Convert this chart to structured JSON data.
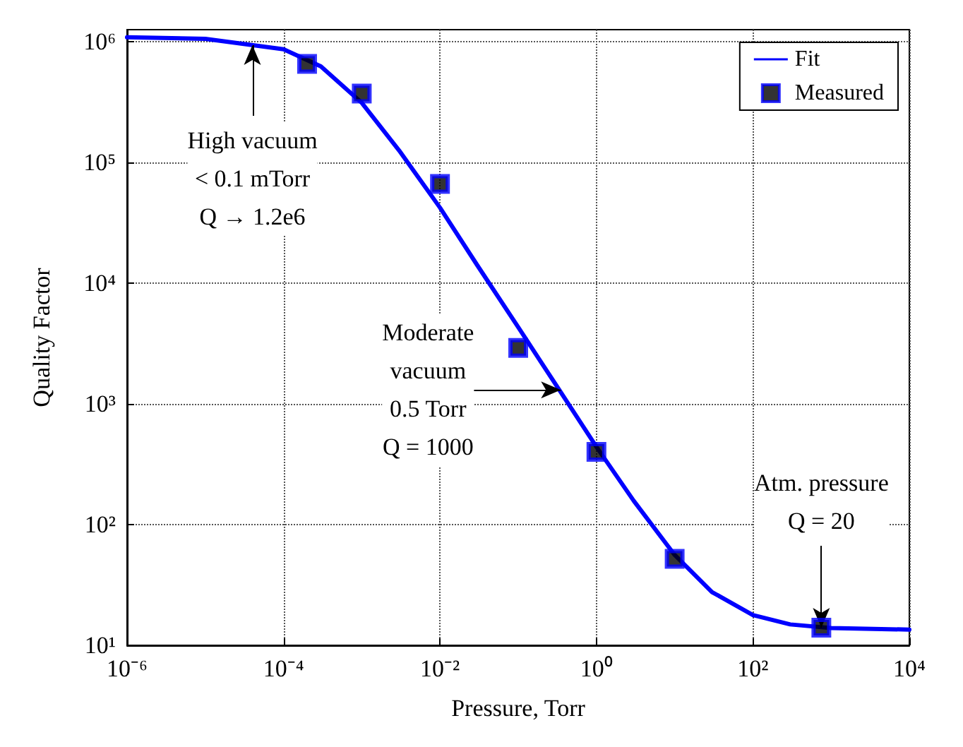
{
  "chart_data": {
    "type": "line",
    "xlabel": "Pressure, Torr",
    "ylabel": "Quality Factor",
    "log": "xy",
    "grid": true,
    "legend": "top right",
    "xlim": [
      1e-06,
      10000
    ],
    "ylim": [
      10,
      1250000
    ],
    "xticks": [
      {
        "value": 1e-06,
        "label": "10⁻⁶"
      },
      {
        "value": 0.0001,
        "label": "10⁻⁴"
      },
      {
        "value": 0.01,
        "label": "10⁻²"
      },
      {
        "value": 1,
        "label": "10⁰"
      },
      {
        "value": 100,
        "label": "10²"
      },
      {
        "value": 10000,
        "label": "10⁴"
      }
    ],
    "yticks": [
      {
        "value": 10,
        "label": "10¹"
      },
      {
        "value": 100,
        "label": "10²"
      },
      {
        "value": 1000,
        "label": "10³"
      },
      {
        "value": 10000,
        "label": "10⁴"
      },
      {
        "value": 100000,
        "label": "10⁵"
      },
      {
        "value": 1000000,
        "label": "10⁶"
      }
    ],
    "series": [
      {
        "name": "Fit",
        "type": "line",
        "color": "#0000ff",
        "marker": "none",
        "line_style": "solid",
        "x": [
          1e-06,
          1e-05,
          0.0001,
          0.0003,
          0.001,
          0.003,
          0.01,
          0.03,
          0.1,
          0.3,
          1,
          3,
          10,
          30,
          100,
          300,
          1000,
          10000
        ],
        "values": [
          1080000,
          1050000,
          860000,
          620000,
          310000,
          125000,
          42000,
          14000,
          4300,
          1450,
          440,
          157,
          56,
          27.6,
          17.8,
          14.9,
          13.9,
          13.5
        ]
      },
      {
        "name": "Measured",
        "type": "scatter",
        "color": "#0000ff",
        "marker": "square",
        "x": [
          0.0002,
          0.001,
          0.01,
          0.1,
          1,
          10,
          750
        ],
        "values": [
          650000,
          370000,
          66000,
          2900,
          400,
          52,
          14
        ]
      }
    ],
    "annotations": [
      {
        "text": "High vacuum\n< 0.1 mTorr\nQ → 1.2e6",
        "x": 4e-05,
        "y": 930000
      },
      {
        "text": "Moderate\nvacuum\n0.5 Torr\nQ = 1000",
        "x": 0.35,
        "y": 1300
      },
      {
        "text": "Atm. pressure\nQ = 20",
        "x": 750,
        "y": 14
      }
    ]
  }
}
